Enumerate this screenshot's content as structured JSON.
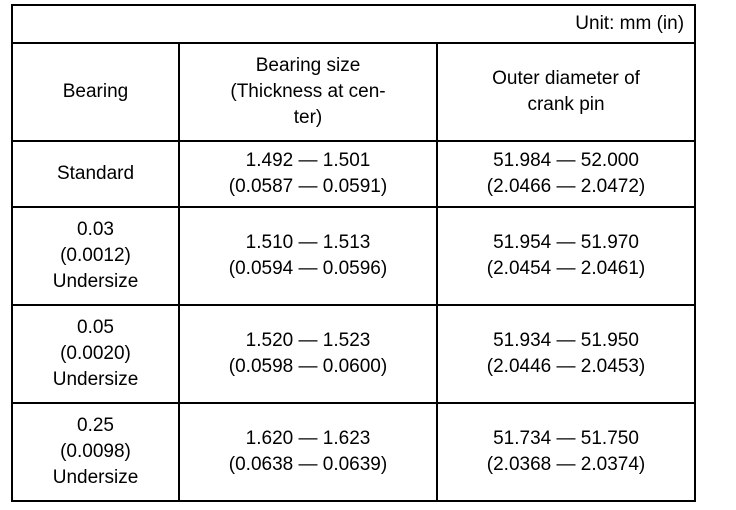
{
  "unit_label": "Unit: mm (in)",
  "table": {
    "columns": {
      "bearing": "Bearing",
      "bearing_size": "Bearing size\n(Thickness at cen-\nter)",
      "outer_diameter": "Outer diameter of\ncrank pin"
    },
    "rows": [
      {
        "bearing": "Standard",
        "bearing_size": "1.492 — 1.501\n(0.0587 — 0.0591)",
        "outer_diameter": "51.984 — 52.000\n(2.0466 — 2.0472)"
      },
      {
        "bearing": "0.03\n(0.0012)\nUndersize",
        "bearing_size": "1.510 — 1.513\n(0.0594 — 0.0596)",
        "outer_diameter": "51.954 — 51.970\n(2.0454 — 2.0461)"
      },
      {
        "bearing": "0.05\n(0.0020)\nUndersize",
        "bearing_size": "1.520 — 1.523\n(0.0598 — 0.0600)",
        "outer_diameter": "51.934 — 51.950\n(2.0446 — 2.0453)"
      },
      {
        "bearing": "0.25\n(0.0098)\nUndersize",
        "bearing_size": "1.620 — 1.623\n(0.0638 — 0.0639)",
        "outer_diameter": "51.734 — 51.750\n(2.0368 — 2.0374)"
      }
    ]
  }
}
